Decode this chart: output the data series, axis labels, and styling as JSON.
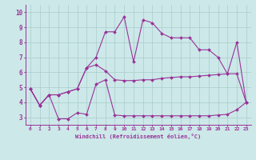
{
  "xlabel": "Windchill (Refroidissement éolien,°C)",
  "background_color": "#cce8e8",
  "line_color": "#993399",
  "xlim": [
    -0.5,
    23.5
  ],
  "ylim": [
    2.5,
    10.5
  ],
  "xticks": [
    0,
    1,
    2,
    3,
    4,
    5,
    6,
    7,
    8,
    9,
    10,
    11,
    12,
    13,
    14,
    15,
    16,
    17,
    18,
    19,
    20,
    21,
    22,
    23
  ],
  "yticks": [
    3,
    4,
    5,
    6,
    7,
    8,
    9,
    10
  ],
  "line1_x": [
    0,
    1,
    2,
    3,
    4,
    5,
    6,
    7,
    8,
    9,
    10,
    11,
    12,
    13,
    14,
    15,
    16,
    17,
    18,
    19,
    20,
    21,
    22,
    23
  ],
  "line1_y": [
    4.9,
    3.8,
    4.5,
    2.9,
    2.9,
    3.3,
    3.2,
    5.2,
    5.5,
    3.15,
    3.1,
    3.1,
    3.1,
    3.1,
    3.1,
    3.1,
    3.1,
    3.1,
    3.1,
    3.1,
    3.15,
    3.2,
    3.5,
    4.0
  ],
  "line2_x": [
    0,
    1,
    2,
    3,
    4,
    5,
    6,
    7,
    8,
    9,
    10,
    11,
    12,
    13,
    14,
    15,
    16,
    17,
    18,
    19,
    20,
    21,
    22,
    23
  ],
  "line2_y": [
    4.9,
    3.8,
    4.5,
    4.5,
    4.7,
    4.9,
    6.3,
    6.5,
    6.1,
    5.5,
    5.45,
    5.45,
    5.5,
    5.5,
    5.6,
    5.65,
    5.7,
    5.7,
    5.75,
    5.8,
    5.85,
    5.9,
    5.9,
    4.0
  ],
  "line3_x": [
    0,
    1,
    2,
    3,
    4,
    5,
    6,
    7,
    8,
    9,
    10,
    11,
    12,
    13,
    14,
    15,
    16,
    17,
    18,
    19,
    20,
    21,
    22,
    23
  ],
  "line3_y": [
    4.9,
    3.8,
    4.5,
    4.5,
    4.7,
    4.9,
    6.3,
    7.0,
    8.7,
    8.7,
    9.7,
    6.7,
    9.5,
    9.3,
    8.6,
    8.3,
    8.3,
    8.3,
    7.5,
    7.5,
    7.0,
    5.9,
    8.0,
    4.0
  ],
  "grid_color": "#aacccc",
  "marker": "D",
  "markersize": 2.0,
  "linewidth": 0.8
}
